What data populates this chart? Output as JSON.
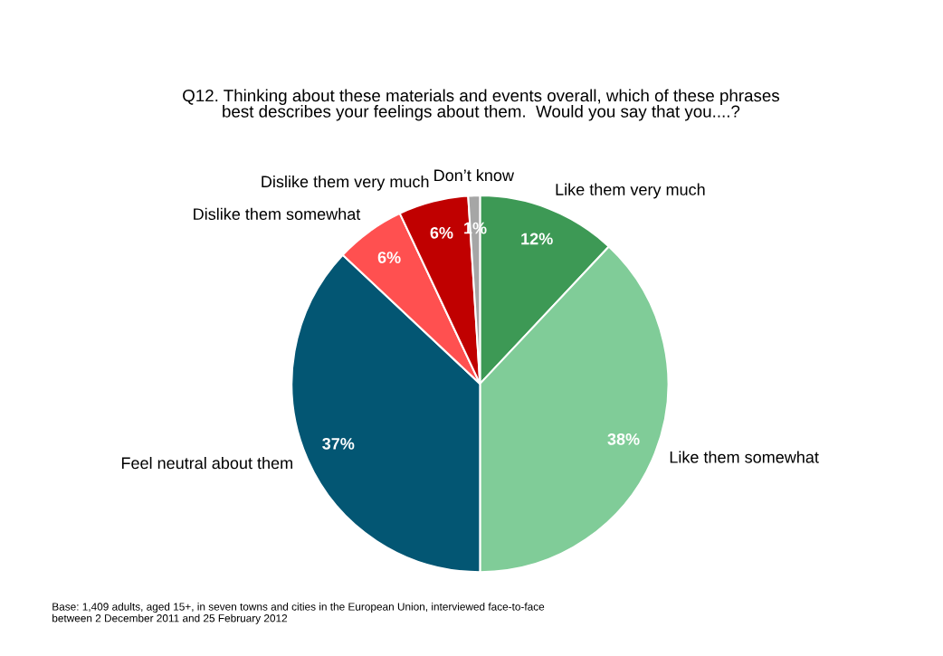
{
  "chart_data": {
    "type": "pie",
    "title": "Q12. Thinking about these materials and events overall, which of these phrases\nbest describes your feelings about them.  Would you say that you....?",
    "categories": [
      "Like them very much",
      "Like them somewhat",
      "Feel neutral about them",
      "Dislike them somewhat",
      "Dislike them very much",
      "Don’t know"
    ],
    "values": [
      12,
      38,
      37,
      6,
      6,
      1
    ],
    "value_labels": [
      "12%",
      "38%",
      "37%",
      "6%",
      "6%",
      "1%"
    ],
    "colors": [
      "#3d9955",
      "#80cc98",
      "#035673",
      "#ff5050",
      "#c00000",
      "#a6a6a6"
    ],
    "annotations": [
      "Base: 1,409 adults, aged 15+, in seven towns and cities in the European Union, interviewed face-to-face\nbetween 2 December 2011 and 25 February 2012"
    ]
  }
}
